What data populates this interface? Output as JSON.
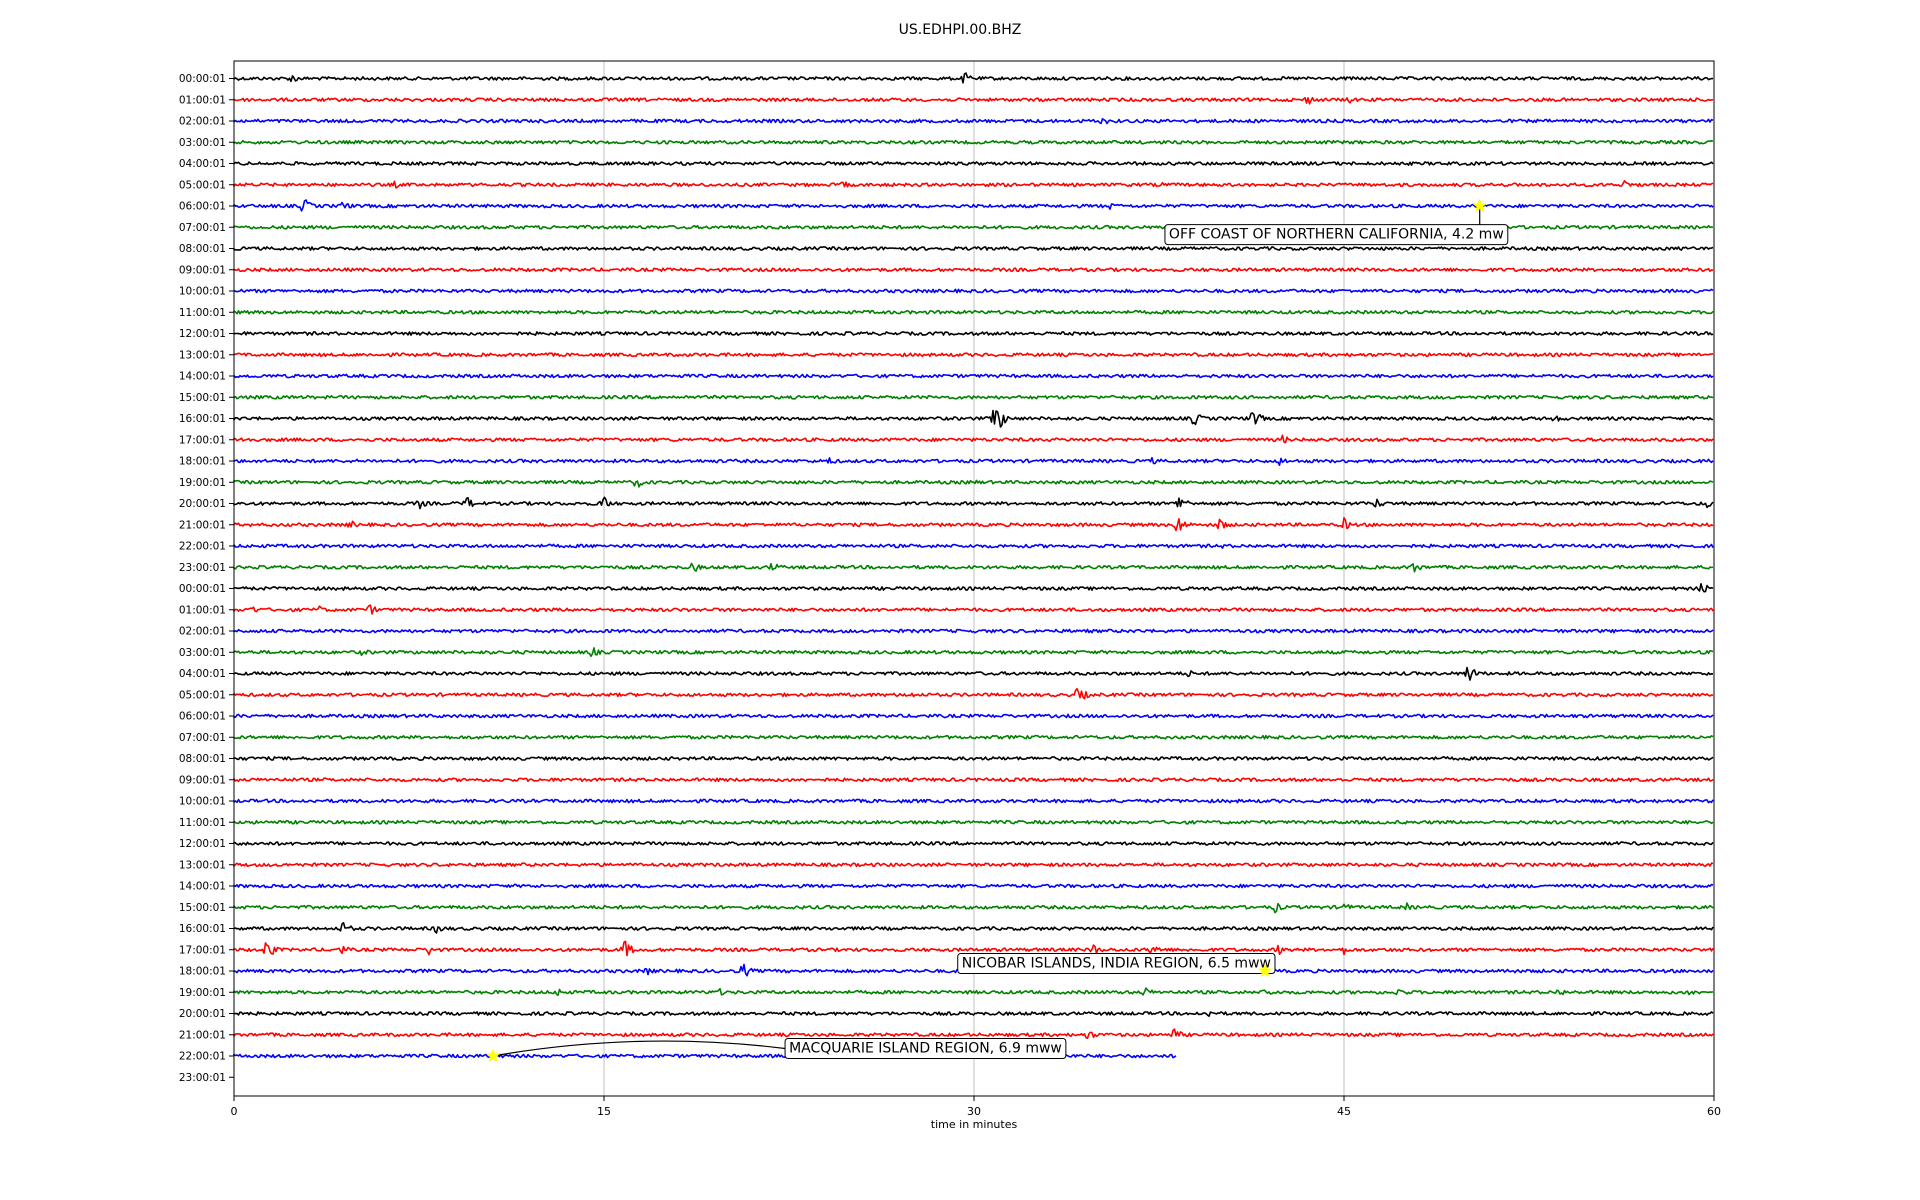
{
  "chart_data": {
    "type": "line",
    "title": "US.EDHPI.00.BHZ",
    "xlabel": "time in minutes",
    "ylabel": "",
    "xlim": [
      0,
      60
    ],
    "xticks": [
      0,
      15,
      30,
      45,
      60
    ],
    "grid": "vertical",
    "trace_colors": [
      "#000000",
      "#ff0000",
      "#0000ff",
      "#008000"
    ],
    "row_labels": [
      "00:00:01",
      "01:00:01",
      "02:00:01",
      "03:00:01",
      "04:00:01",
      "05:00:01",
      "06:00:01",
      "07:00:01",
      "08:00:01",
      "09:00:01",
      "10:00:01",
      "11:00:01",
      "12:00:01",
      "13:00:01",
      "14:00:01",
      "15:00:01",
      "16:00:01",
      "17:00:01",
      "18:00:01",
      "19:00:01",
      "20:00:01",
      "21:00:01",
      "22:00:01",
      "23:00:01",
      "00:00:01",
      "01:00:01",
      "02:00:01",
      "03:00:01",
      "04:00:01",
      "05:00:01",
      "06:00:01",
      "07:00:01",
      "08:00:01",
      "09:00:01",
      "10:00:01",
      "11:00:01",
      "12:00:01",
      "13:00:01",
      "14:00:01",
      "15:00:01",
      "16:00:01",
      "17:00:01",
      "18:00:01",
      "19:00:01",
      "20:00:01",
      "21:00:01",
      "22:00:01",
      "23:00:01"
    ],
    "trace_end_minutes": {
      "46": 38.2
    },
    "bursts": [
      {
        "row": 0,
        "t": 2.3,
        "a": 6
      },
      {
        "row": 0,
        "t": 29.6,
        "a": 7
      },
      {
        "row": 1,
        "t": 43.5,
        "a": 6
      },
      {
        "row": 1,
        "t": 45.2,
        "a": 4
      },
      {
        "row": 2,
        "t": 35.2,
        "a": 5
      },
      {
        "row": 5,
        "t": 6.5,
        "a": 4
      },
      {
        "row": 5,
        "t": 24.7,
        "a": 5
      },
      {
        "row": 5,
        "t": 37.5,
        "a": 4
      },
      {
        "row": 5,
        "t": 56.3,
        "a": 6
      },
      {
        "row": 6,
        "t": 2.8,
        "a": 9
      },
      {
        "row": 6,
        "t": 4.4,
        "a": 6
      },
      {
        "row": 6,
        "t": 35.5,
        "a": 4
      },
      {
        "row": 16,
        "t": 30.8,
        "a": 22
      },
      {
        "row": 16,
        "t": 38.9,
        "a": 8
      },
      {
        "row": 16,
        "t": 41.3,
        "a": 10
      },
      {
        "row": 16,
        "t": 53.5,
        "a": 5
      },
      {
        "row": 17,
        "t": 0.2,
        "a": 7
      },
      {
        "row": 17,
        "t": 42.5,
        "a": 5
      },
      {
        "row": 18,
        "t": 24.1,
        "a": 5
      },
      {
        "row": 18,
        "t": 37.2,
        "a": 4
      },
      {
        "row": 18,
        "t": 42.4,
        "a": 5
      },
      {
        "row": 19,
        "t": 16.3,
        "a": 7
      },
      {
        "row": 19,
        "t": 29.9,
        "a": 4
      },
      {
        "row": 20,
        "t": 7.5,
        "a": 6
      },
      {
        "row": 20,
        "t": 9.4,
        "a": 8
      },
      {
        "row": 20,
        "t": 14.9,
        "a": 10
      },
      {
        "row": 20,
        "t": 38.3,
        "a": 10
      },
      {
        "row": 20,
        "t": 46.3,
        "a": 6
      },
      {
        "row": 20,
        "t": 59.7,
        "a": 6
      },
      {
        "row": 21,
        "t": 4.7,
        "a": 5
      },
      {
        "row": 21,
        "t": 38.2,
        "a": 12
      },
      {
        "row": 21,
        "t": 39.9,
        "a": 8
      },
      {
        "row": 21,
        "t": 45.0,
        "a": 7
      },
      {
        "row": 22,
        "t": 40.0,
        "a": 3
      },
      {
        "row": 23,
        "t": 18.6,
        "a": 6
      },
      {
        "row": 23,
        "t": 21.8,
        "a": 6
      },
      {
        "row": 23,
        "t": 47.8,
        "a": 7
      },
      {
        "row": 24,
        "t": 59.5,
        "a": 7
      },
      {
        "row": 25,
        "t": 0.7,
        "a": 5
      },
      {
        "row": 25,
        "t": 3.4,
        "a": 5
      },
      {
        "row": 25,
        "t": 5.5,
        "a": 6
      },
      {
        "row": 27,
        "t": 5.2,
        "a": 4
      },
      {
        "row": 27,
        "t": 14.5,
        "a": 6
      },
      {
        "row": 28,
        "t": 38.7,
        "a": 4
      },
      {
        "row": 28,
        "t": 50.0,
        "a": 11
      },
      {
        "row": 29,
        "t": 27.3,
        "a": 5
      },
      {
        "row": 29,
        "t": 34.2,
        "a": 10
      },
      {
        "row": 39,
        "t": 42.2,
        "a": 6
      },
      {
        "row": 39,
        "t": 45.0,
        "a": 5
      },
      {
        "row": 39,
        "t": 47.5,
        "a": 5
      },
      {
        "row": 40,
        "t": 4.4,
        "a": 8
      },
      {
        "row": 40,
        "t": 8.2,
        "a": 6
      },
      {
        "row": 41,
        "t": 1.3,
        "a": 11
      },
      {
        "row": 41,
        "t": 4.3,
        "a": 6
      },
      {
        "row": 41,
        "t": 7.9,
        "a": 6
      },
      {
        "row": 41,
        "t": 15.8,
        "a": 11
      },
      {
        "row": 41,
        "t": 34.8,
        "a": 7
      },
      {
        "row": 41,
        "t": 37.2,
        "a": 8
      },
      {
        "row": 41,
        "t": 42.3,
        "a": 6
      },
      {
        "row": 41,
        "t": 45.0,
        "a": 5
      },
      {
        "row": 42,
        "t": 16.7,
        "a": 5
      },
      {
        "row": 42,
        "t": 20.6,
        "a": 9
      },
      {
        "row": 42,
        "t": 51.5,
        "a": 4
      },
      {
        "row": 43,
        "t": 13.1,
        "a": 5
      },
      {
        "row": 43,
        "t": 19.6,
        "a": 5
      },
      {
        "row": 43,
        "t": 36.9,
        "a": 6
      },
      {
        "row": 43,
        "t": 41.8,
        "a": 6
      },
      {
        "row": 43,
        "t": 47.2,
        "a": 6
      },
      {
        "row": 43,
        "t": 53.7,
        "a": 5
      },
      {
        "row": 43,
        "t": 59.0,
        "a": 5
      },
      {
        "row": 44,
        "t": 39.5,
        "a": 4
      },
      {
        "row": 45,
        "t": 34.6,
        "a": 6
      },
      {
        "row": 45,
        "t": 38.1,
        "a": 7
      }
    ],
    "events": [
      {
        "label": "OFF COAST OF NORTHERN CALIFORNIA, 4.2 mw",
        "row": 6,
        "t": 50.5,
        "label_row": 7.3,
        "label_t": 37.7
      },
      {
        "label": "NICOBAR ISLANDS, INDIA REGION, 6.5 mww",
        "row": 42,
        "t": 41.8,
        "label_row": 41.6,
        "label_t": 29.3
      },
      {
        "label": "MACQUARIE ISLAND REGION, 6.9 mww",
        "row": 46,
        "t": 10.5,
        "label_row": 45.6,
        "label_t": 22.3
      }
    ],
    "event_marker_color": "#ffff00"
  }
}
